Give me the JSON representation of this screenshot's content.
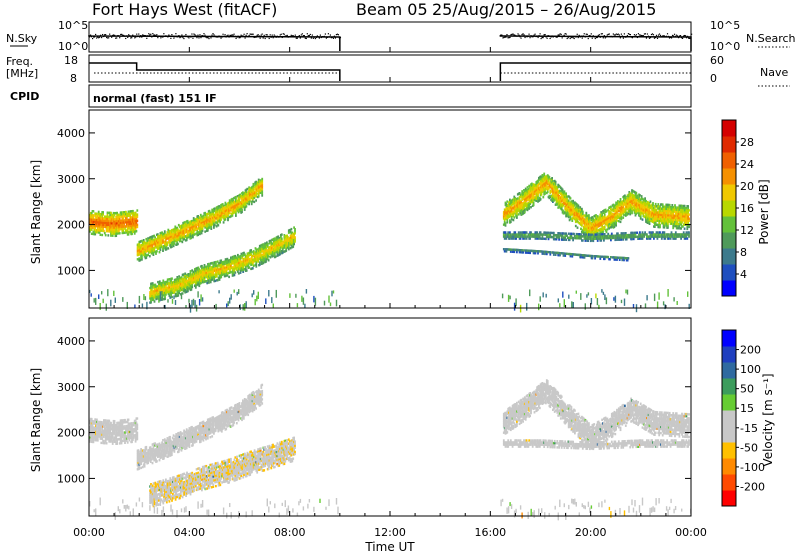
{
  "header": {
    "radar": "Fort Hays West (fitACF)",
    "beam": "Beam 05",
    "dates": "25/Aug/2015 – 26/Aug/2015"
  },
  "status_panels": {
    "nsky_label": "N.Sky",
    "nsky_ticks": [
      "10^5",
      "10^0"
    ],
    "nsearch_label": "N.Search",
    "nsearch_ticks": [
      "10^5",
      "10^0"
    ],
    "freq_label": "Freq.",
    "freq_unit": "[MHz]",
    "freq_ticks": [
      "18",
      "8"
    ],
    "nave_label": "Nave",
    "nave_ticks": [
      "60",
      "0"
    ],
    "cpid_label": "CPID",
    "cpid_text": "normal (fast) 151 IF"
  },
  "colors": {
    "power": [
      "#0000ff",
      "#1f4fbf",
      "#3c7a8c",
      "#4f9a5a",
      "#63c13a",
      "#b8d800",
      "#f0c800",
      "#f59000",
      "#f06000",
      "#e02a00",
      "#d40000"
    ],
    "velocity": [
      "#ff0000",
      "#ff4a00",
      "#ff8a00",
      "#ffc000",
      "#c8c8c8",
      "#c8c8c8",
      "#66cc33",
      "#3c9c5c",
      "#2f6aa0",
      "#1f3fbf",
      "#0000ff"
    ],
    "ground_scatter": "#8a8a8a"
  },
  "chart_data": [
    {
      "type": "heatmap",
      "panel": "power",
      "ylabel": "Slant Range [km]",
      "xlabel": "Time UT",
      "colorbar_label": "Power [dB]",
      "colorbar_ticks": [
        "28",
        "24",
        "20",
        "16",
        "12",
        "8",
        "4"
      ],
      "colorbar_range": [
        0,
        32
      ],
      "ylim": [
        180,
        4500
      ],
      "yticks": [
        "4000",
        "3000",
        "2000",
        "1000"
      ],
      "xlim": [
        0,
        24
      ],
      "xticks": [
        "00:00",
        "04:00",
        "08:00",
        "12:00",
        "16:00",
        "20:00",
        "00:00"
      ],
      "data_gaps_hours": [
        [
          10.0,
          16.4
        ]
      ],
      "echo_bands": [
        {
          "t": [
            0.0,
            0.5,
            1.0,
            1.5,
            1.9
          ],
          "r": [
            2050,
            2020,
            2000,
            2030,
            2060
          ],
          "w": 520,
          "power": 26
        },
        {
          "t": [
            1.9,
            3.0,
            4.0,
            5.0,
            6.0,
            6.9
          ],
          "r": [
            1400,
            1650,
            1900,
            2150,
            2450,
            2850
          ],
          "w": 430,
          "power": 22
        },
        {
          "t": [
            2.4,
            3.5,
            4.5,
            5.5,
            6.5,
            7.4,
            8.2
          ],
          "r": [
            500,
            650,
            900,
            1050,
            1250,
            1500,
            1750
          ],
          "w": 430,
          "power": 20
        },
        {
          "t": [
            16.5,
            17.3,
            18.2,
            19.2,
            20.0,
            20.8,
            21.6,
            22.5,
            23.9
          ],
          "r": [
            2200,
            2500,
            2900,
            2300,
            1900,
            2150,
            2500,
            2200,
            2150
          ],
          "w": 520,
          "power": 22
        },
        {
          "t": [
            16.5,
            18.0,
            20.0,
            22.0,
            23.9
          ],
          "r": [
            1750,
            1750,
            1700,
            1750,
            1750
          ],
          "w": 140,
          "power": 12
        },
        {
          "t": [
            16.5,
            18.0,
            20.0,
            21.5
          ],
          "r": [
            1450,
            1400,
            1300,
            1250
          ],
          "w": 90,
          "power": 8
        }
      ]
    },
    {
      "type": "heatmap",
      "panel": "velocity",
      "ylabel": "Slant Range [km]",
      "xlabel": "Time UT",
      "colorbar_label": "Velocity [m s⁻¹]",
      "colorbar_ticks": [
        "200",
        "100",
        "50",
        "15",
        "-15",
        "-50",
        "-100",
        "-200"
      ],
      "colorbar_range": [
        -250,
        250
      ],
      "ylim": [
        180,
        4500
      ],
      "yticks": [
        "4000",
        "3000",
        "2000",
        "1000"
      ],
      "xlim": [
        0,
        24
      ],
      "xticks": [
        "00:00",
        "04:00",
        "08:00",
        "12:00",
        "16:00",
        "20:00",
        "00:00"
      ],
      "data_gaps_hours": [
        [
          10.0,
          16.4
        ]
      ],
      "echo_bands": [
        {
          "t": [
            0.0,
            0.5,
            1.0,
            1.5,
            1.9
          ],
          "r": [
            2050,
            2020,
            2000,
            2030,
            2060
          ],
          "w": 520,
          "vel": 0
        },
        {
          "t": [
            1.9,
            3.0,
            4.0,
            5.0,
            6.0,
            6.9
          ],
          "r": [
            1400,
            1650,
            1900,
            2150,
            2450,
            2850
          ],
          "w": 430,
          "vel": 0
        },
        {
          "t": [
            2.4,
            3.5,
            4.5,
            5.5,
            6.5,
            7.4,
            8.2
          ],
          "r": [
            620,
            800,
            1000,
            1150,
            1350,
            1500,
            1650
          ],
          "w": 520,
          "vel": -60
        },
        {
          "t": [
            16.5,
            17.3,
            18.2,
            19.2,
            20.0,
            20.8,
            21.6,
            22.5,
            23.9
          ],
          "r": [
            2200,
            2500,
            2900,
            2300,
            1900,
            2150,
            2500,
            2200,
            2150
          ],
          "w": 520,
          "vel": 0
        },
        {
          "t": [
            16.5,
            18.0,
            20.0,
            22.0,
            23.9
          ],
          "r": [
            1750,
            1750,
            1700,
            1750,
            1750
          ],
          "w": 140,
          "vel": 0
        }
      ]
    }
  ]
}
